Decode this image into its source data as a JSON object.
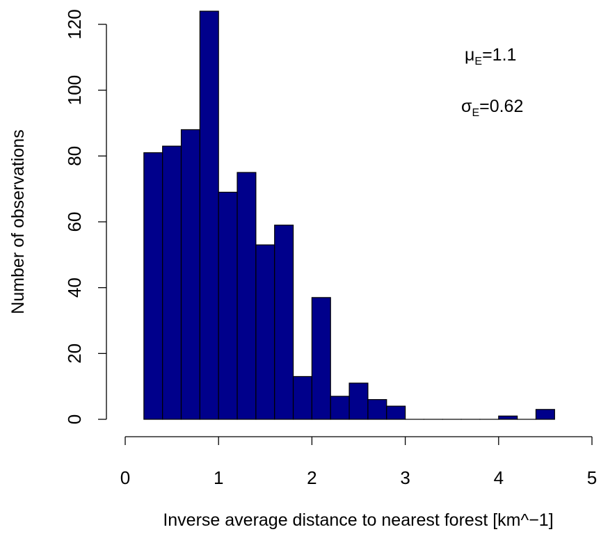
{
  "chart_data": {
    "type": "bar",
    "xlabel": "Inverse average distance to nearest forest [km^−1]",
    "ylabel": "Number of observations",
    "xlim": [
      0,
      5
    ],
    "ylim": [
      0,
      120
    ],
    "x_ticks": [
      "0",
      "1",
      "2",
      "3",
      "4",
      "5"
    ],
    "y_ticks": [
      "0",
      "20",
      "40",
      "60",
      "80",
      "100",
      "120"
    ],
    "bin_width": 0.2,
    "bin_start": 0.2,
    "values": [
      81,
      83,
      88,
      124,
      69,
      75,
      53,
      59,
      13,
      37,
      7,
      11,
      6,
      4,
      0,
      0,
      0,
      0,
      0,
      1,
      0,
      3
    ],
    "bar_color": "#00008B",
    "annotations": {
      "mu": {
        "symbol": "μ",
        "sub": "E",
        "value": "=1.1"
      },
      "sigma": {
        "symbol": "σ",
        "sub": "E",
        "value": "=0.62"
      }
    },
    "grid": false
  }
}
